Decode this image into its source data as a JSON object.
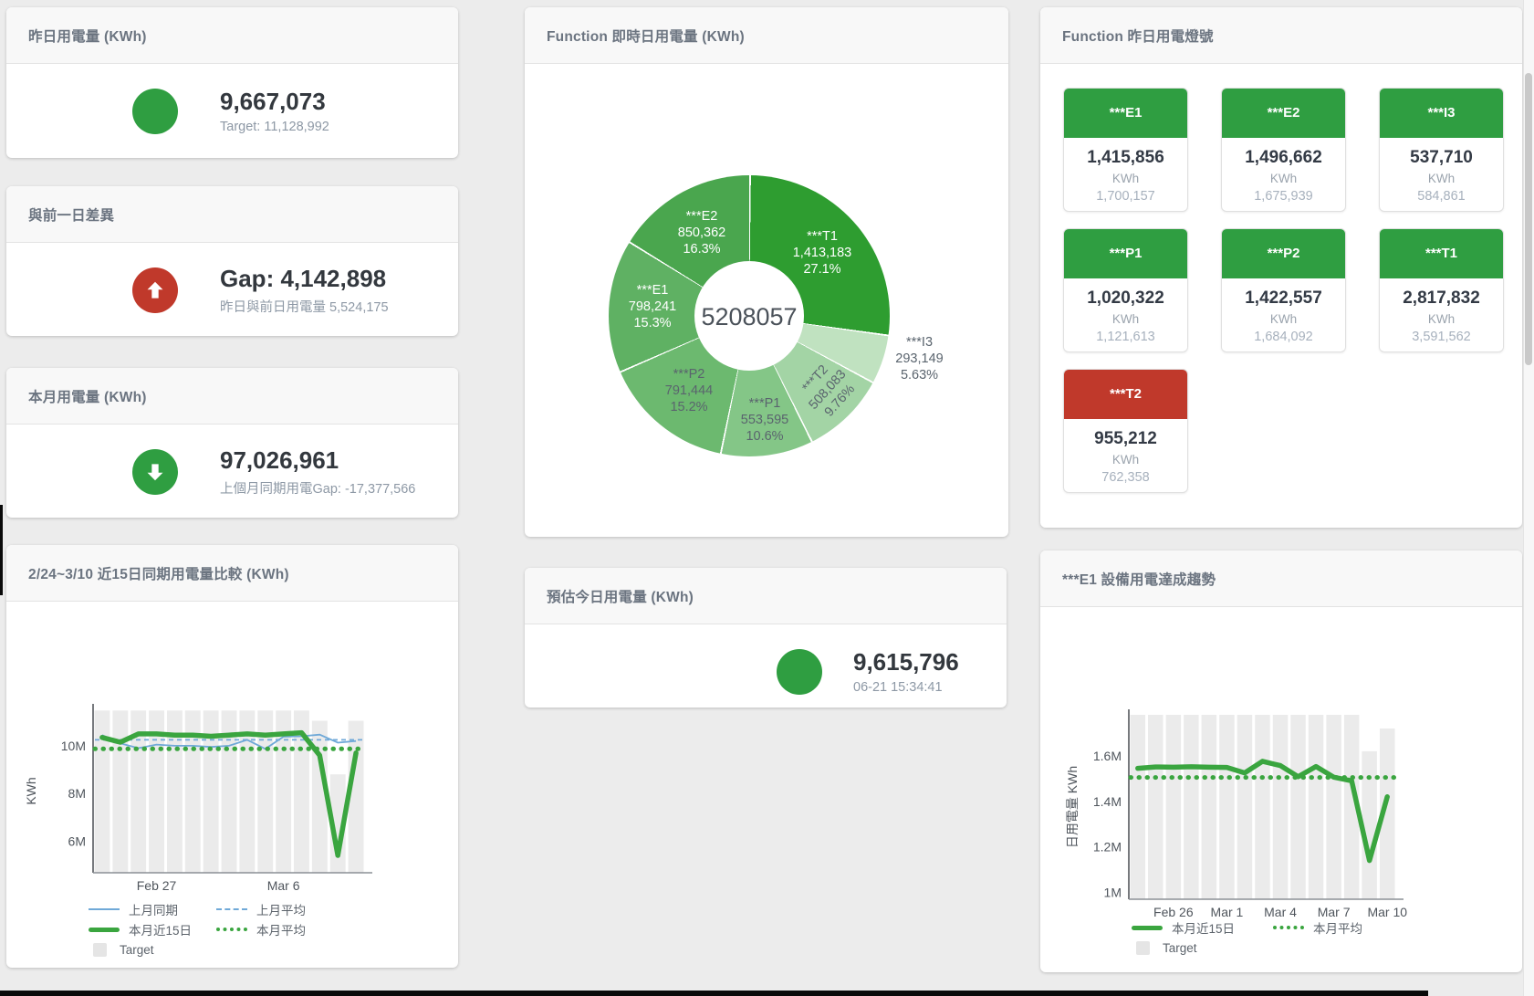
{
  "cards": {
    "yesterday": {
      "title": "昨日用電量 (KWh)",
      "value": "9,667,073",
      "subtitle": "Target: 11,128,992",
      "status_color": "#2f9e41"
    },
    "gap": {
      "title": "與前一日差異",
      "value": "Gap: 4,142,898",
      "subtitle": "昨日與前日用電量 5,524,175",
      "status_color": "#c0392b"
    },
    "month": {
      "title": "本月用電量 (KWh)",
      "value": "97,026,961",
      "subtitle": "上個月同期用電Gap: -17,377,566",
      "status_color": "#2f9e41"
    },
    "estimate": {
      "title": "預估今日用電量 (KWh)",
      "value": "9,615,796",
      "subtitle": "06-21 15:34:41",
      "status_color": "#2f9e41"
    }
  },
  "donut": {
    "title": "Function 即時日用電量 (KWh)",
    "center_value": "5208057",
    "segments": [
      {
        "name": "***T1",
        "value": "1,413,183",
        "pct_label": "27.1%",
        "pct": 27.1,
        "color": "#2e9d30"
      },
      {
        "name": "***I3",
        "value": "293,149",
        "pct_label": "5.63%",
        "pct": 5.63,
        "color": "#c0e2c0"
      },
      {
        "name": "***T2",
        "value": "508,083",
        "pct_label": "9.76%",
        "pct": 9.76,
        "color": "#a3d4a5"
      },
      {
        "name": "***P1",
        "value": "553,595",
        "pct_label": "10.6%",
        "pct": 10.6,
        "color": "#84c687"
      },
      {
        "name": "***P2",
        "value": "791,444",
        "pct_label": "15.2%",
        "pct": 15.2,
        "color": "#6cb96f"
      },
      {
        "name": "***E1",
        "value": "798,241",
        "pct_label": "15.3%",
        "pct": 15.3,
        "color": "#5fb163"
      },
      {
        "name": "***E2",
        "value": "850,362",
        "pct_label": "16.3%",
        "pct": 16.3,
        "color": "#4aa64e"
      }
    ]
  },
  "lights": {
    "title": "Function 昨日用電燈號",
    "colors": {
      "green": "#2f9e41",
      "red": "#c0392b"
    },
    "tiles": [
      {
        "name": "***E1",
        "value": "1,415,856",
        "unit": "KWh",
        "target": "1,700,157",
        "status": "green"
      },
      {
        "name": "***E2",
        "value": "1,496,662",
        "unit": "KWh",
        "target": "1,675,939",
        "status": "green"
      },
      {
        "name": "***I3",
        "value": "537,710",
        "unit": "KWh",
        "target": "584,861",
        "status": "green"
      },
      {
        "name": "***P1",
        "value": "1,020,322",
        "unit": "KWh",
        "target": "1,121,613",
        "status": "green"
      },
      {
        "name": "***P2",
        "value": "1,422,557",
        "unit": "KWh",
        "target": "1,684,092",
        "status": "green"
      },
      {
        "name": "***T1",
        "value": "2,817,832",
        "unit": "KWh",
        "target": "3,591,562",
        "status": "green"
      },
      {
        "name": "***T2",
        "value": "955,212",
        "unit": "KWh",
        "target": "762,358",
        "status": "red"
      }
    ]
  },
  "chart_data": [
    {
      "type": "combo-bar-line",
      "title": "2/24~3/10 近15日同期用電量比較 (KWh)",
      "ylabel": "KWh",
      "ylim": [
        4670000,
        11530000
      ],
      "yticks": [
        {
          "v": 6000000,
          "label": "6M"
        },
        {
          "v": 8000000,
          "label": "8M"
        },
        {
          "v": 10000000,
          "label": "10M"
        }
      ],
      "xticks": [
        {
          "i": 3,
          "label": "Feb 27"
        },
        {
          "i": 10,
          "label": "Mar 6"
        }
      ],
      "n": 15,
      "categories": [
        "2/24",
        "2/25",
        "2/26",
        "2/27",
        "2/28",
        "3/1",
        "3/2",
        "3/3",
        "3/4",
        "3/5",
        "3/6",
        "3/7",
        "3/8",
        "3/9",
        "3/10"
      ],
      "series": [
        {
          "name": "Target",
          "style": "bars",
          "values": [
            11480000,
            11480000,
            11480000,
            11480000,
            11480000,
            11480000,
            11480000,
            11480000,
            11480000,
            11480000,
            11480000,
            11480000,
            11050000,
            8800000,
            11050000
          ]
        },
        {
          "name": "上月同期",
          "style": "blue-solid",
          "values": [
            10450000,
            10100000,
            9900000,
            10050000,
            10000000,
            10000000,
            9950000,
            10000000,
            10250000,
            9870000,
            10380000,
            10400000,
            10470000,
            10130000,
            10200000
          ]
        },
        {
          "name": "上月平均",
          "style": "blue-dashed",
          "value": 10250000
        },
        {
          "name": "本月近15日",
          "style": "green-thick",
          "values": [
            10350000,
            10150000,
            10500000,
            10500000,
            10450000,
            10450000,
            10400000,
            10450000,
            10500000,
            10450000,
            10500000,
            10550000,
            9600000,
            5400000,
            9700000
          ]
        },
        {
          "name": "本月平均",
          "style": "green-dotted",
          "value": 9870000
        }
      ],
      "legend": [
        [
          "blue-solid",
          "上月同期"
        ],
        [
          "blue-dashed",
          "上月平均"
        ],
        [
          "green-thick",
          "本月近15日"
        ],
        [
          "green-dotted",
          "本月平均"
        ],
        [
          "bars",
          "Target"
        ]
      ]
    },
    {
      "type": "combo-bar-line",
      "title": "***E1 設備用電達成趨勢",
      "ylabel": "日用電量 KWh",
      "ylim": [
        970000,
        1780000
      ],
      "yticks": [
        {
          "v": 1000000,
          "label": "1M"
        },
        {
          "v": 1200000,
          "label": "1.2M"
        },
        {
          "v": 1400000,
          "label": "1.4M"
        },
        {
          "v": 1600000,
          "label": "1.6M"
        }
      ],
      "xticks": [
        {
          "i": 2,
          "label": "Feb 26"
        },
        {
          "i": 5,
          "label": "Mar 1"
        },
        {
          "i": 8,
          "label": "Mar 4"
        },
        {
          "i": 11,
          "label": "Mar 7"
        },
        {
          "i": 14,
          "label": "Mar 10"
        }
      ],
      "n": 15,
      "categories": [
        "2/24",
        "2/25",
        "2/26",
        "2/27",
        "2/28",
        "3/1",
        "3/2",
        "3/3",
        "3/4",
        "3/5",
        "3/6",
        "3/7",
        "3/8",
        "3/9",
        "3/10"
      ],
      "series": [
        {
          "name": "Target",
          "style": "bars",
          "values": [
            1780000,
            1780000,
            1780000,
            1780000,
            1780000,
            1780000,
            1780000,
            1780000,
            1780000,
            1780000,
            1780000,
            1780000,
            1780000,
            1620000,
            1720000
          ]
        },
        {
          "name": "本月近15日",
          "style": "green-thick",
          "values": [
            1545000,
            1551000,
            1550000,
            1552000,
            1550000,
            1549000,
            1525000,
            1576000,
            1557000,
            1508000,
            1553000,
            1506000,
            1490000,
            1140000,
            1420000
          ]
        },
        {
          "name": "本月平均",
          "style": "green-dotted",
          "value": 1505000
        }
      ],
      "legend": [
        [
          "green-thick",
          "本月近15日"
        ],
        [
          "green-dotted",
          "本月平均"
        ],
        [
          "bars",
          "Target"
        ]
      ]
    }
  ]
}
